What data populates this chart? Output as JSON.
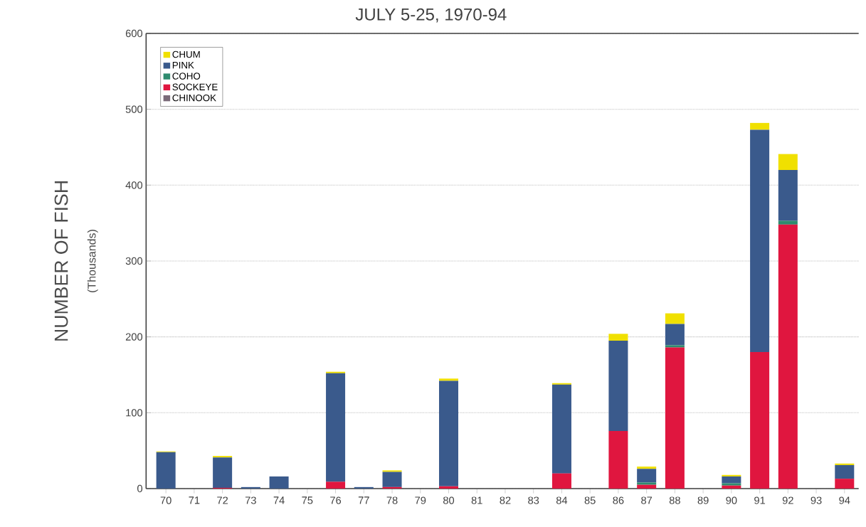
{
  "chart_data": {
    "type": "bar",
    "title": "JULY 5-25, 1970-94",
    "ylabel": "NUMBER OF FISH",
    "annotations": [
      "(Thousands)"
    ],
    "categories": [
      "70",
      "71",
      "72",
      "73",
      "74",
      "75",
      "76",
      "77",
      "78",
      "79",
      "80",
      "81",
      "82",
      "83",
      "84",
      "85",
      "86",
      "87",
      "88",
      "89",
      "90",
      "91",
      "92",
      "93",
      "94"
    ],
    "stacked": true,
    "series": [
      {
        "name": "CHINOOK",
        "color": "#7a6a78",
        "values": [
          0,
          0,
          0,
          0,
          0,
          0,
          0,
          0,
          0,
          0,
          0,
          0,
          0,
          0,
          0,
          0,
          0,
          0,
          0,
          0,
          0,
          0,
          0,
          0,
          0
        ]
      },
      {
        "name": "SOCKEYE",
        "color": "#e0163f",
        "values": [
          0,
          0,
          1,
          0,
          0,
          0,
          9,
          0,
          2,
          0,
          3,
          0,
          0,
          0,
          20,
          0,
          76,
          5,
          186,
          0,
          4,
          180,
          348,
          0,
          13
        ]
      },
      {
        "name": "COHO",
        "color": "#2e8b6e",
        "values": [
          0,
          0,
          0,
          0,
          0,
          0,
          0,
          0,
          0,
          0,
          0,
          0,
          0,
          0,
          0,
          0,
          0,
          3,
          3,
          0,
          3,
          0,
          5,
          0,
          0
        ]
      },
      {
        "name": "PINK",
        "color": "#3a5a8c",
        "values": [
          48,
          0,
          40,
          2,
          16,
          0,
          143,
          2,
          20,
          0,
          139,
          0,
          0,
          0,
          117,
          0,
          119,
          18,
          28,
          0,
          9,
          293,
          67,
          0,
          18
        ]
      },
      {
        "name": "CHUM",
        "color": "#f0e000",
        "values": [
          1,
          0,
          2,
          0,
          0,
          0,
          2,
          0,
          2,
          0,
          3,
          0,
          0,
          0,
          2,
          0,
          9,
          3,
          14,
          0,
          2,
          9,
          21,
          0,
          2
        ]
      }
    ],
    "ylim": [
      0,
      600
    ],
    "yticks": [
      0,
      100,
      200,
      300,
      400,
      500,
      600
    ],
    "grid": "y",
    "legend": "top left"
  }
}
